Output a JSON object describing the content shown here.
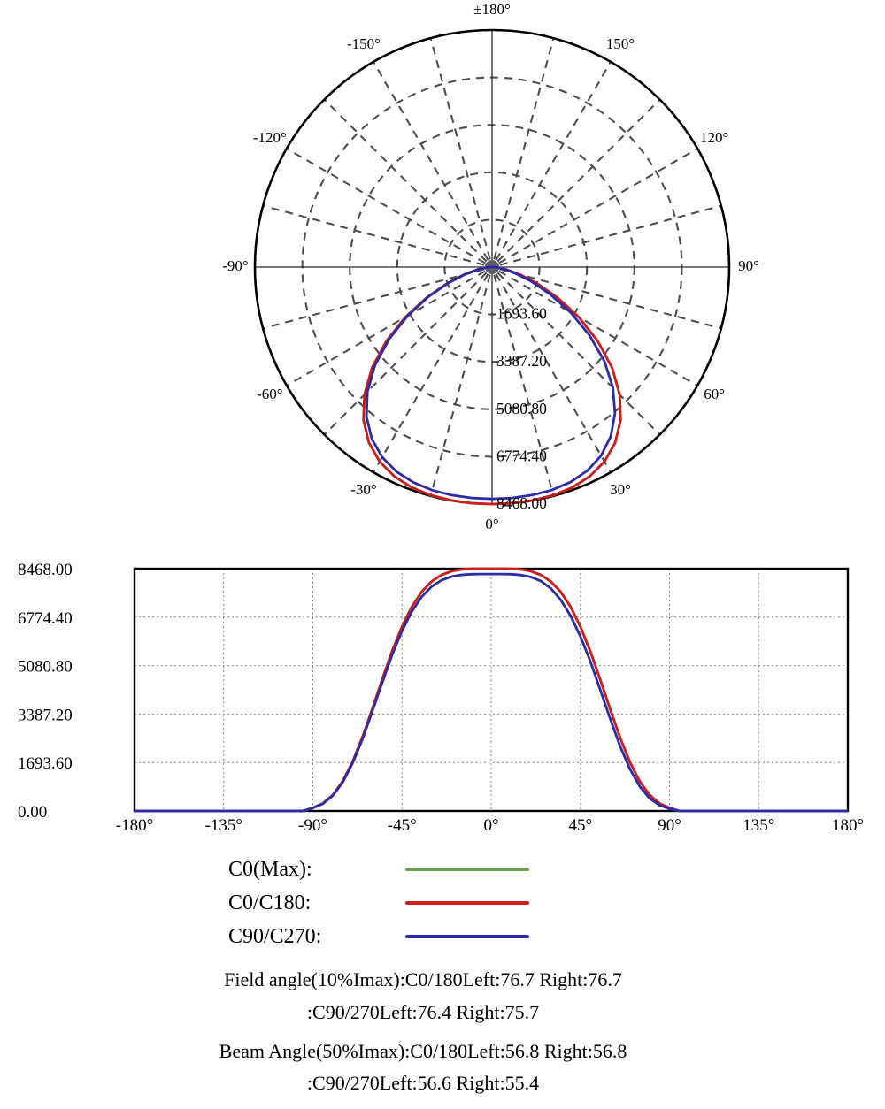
{
  "page": {
    "background": "#ffffff"
  },
  "colors": {
    "c0max_green": "#6b9e54",
    "c0c180_red": "#cf1d1d",
    "c90c270_blue": "#2b2ba8",
    "polar_grid": "#4d4d4d",
    "polar_axis": "#2a2a2a",
    "cart_grid": "#8c8c8c",
    "cart_frame": "#000000",
    "center_dot": "#5e5e6b"
  },
  "legend": {
    "items": [
      {
        "label": "C0(Max):",
        "color": "#6b9e54"
      },
      {
        "label": "C0/C180:",
        "color": "#cf1d1d"
      },
      {
        "label": "C90/C270:",
        "color": "#2b2ba8"
      }
    ]
  },
  "notes": {
    "line1": "Field angle(10%Imax):C0/180Left:76.7 Right:76.7",
    "line2": ":C90/270Left:76.4 Right:75.7",
    "line3": "Beam Angle(50%Imax):C0/180Left:56.8 Right:56.8",
    "line4": ":C90/270Left:56.6 Right:55.4"
  },
  "chart_data": [
    {
      "type": "polar",
      "orientation": "0 deg at bottom, +/-180 deg at top, positive angles clockwise to the right",
      "rmax": 8468,
      "grid": {
        "angle_step_deg": 15,
        "radial_divisions": 5
      },
      "angle_labels": [
        {
          "deg": 180,
          "label": "±180°"
        },
        {
          "deg": -150,
          "label": "-150°"
        },
        {
          "deg": 150,
          "label": "150°"
        },
        {
          "deg": -120,
          "label": "-120°"
        },
        {
          "deg": 120,
          "label": "120°"
        },
        {
          "deg": -90,
          "label": "-90°"
        },
        {
          "deg": 90,
          "label": "90°"
        },
        {
          "deg": -60,
          "label": "-60°"
        },
        {
          "deg": 60,
          "label": "60°"
        },
        {
          "deg": -30,
          "label": "-30°"
        },
        {
          "deg": 30,
          "label": "30°"
        },
        {
          "deg": 0,
          "label": "0°"
        }
      ],
      "radial_tick_labels": [
        "1693.60",
        "3387.20",
        "5080.80",
        "6774.40",
        "8468.00"
      ],
      "angles_deg": [
        -180,
        -175,
        -170,
        -165,
        -160,
        -155,
        -150,
        -145,
        -140,
        -135,
        -130,
        -125,
        -120,
        -115,
        -110,
        -105,
        -100,
        -95,
        -90,
        -85,
        -80,
        -75,
        -70,
        -65,
        -60,
        -55,
        -50,
        -45,
        -40,
        -35,
        -30,
        -25,
        -20,
        -15,
        -10,
        -5,
        0,
        5,
        10,
        15,
        20,
        25,
        30,
        35,
        40,
        45,
        50,
        55,
        60,
        65,
        70,
        75,
        80,
        85,
        90,
        95,
        100,
        105,
        110,
        115,
        120,
        125,
        130,
        135,
        140,
        145,
        150,
        155,
        160,
        165,
        170,
        175,
        180
      ],
      "series": [
        {
          "name": "C0(Max)",
          "color": "#6b9e54",
          "values": [
            0,
            0,
            0,
            0,
            0,
            0,
            0,
            0,
            0,
            0,
            0,
            0,
            0,
            0,
            0,
            0,
            0,
            0,
            107,
            262,
            553,
            1031,
            1712,
            2578,
            3574,
            4601,
            5592,
            6444,
            7141,
            7663,
            8024,
            8251,
            8378,
            8440,
            8462,
            8468,
            8468,
            8468,
            8462,
            8440,
            8378,
            8251,
            8024,
            7663,
            7141,
            6444,
            5592,
            4601,
            3574,
            2578,
            1712,
            1031,
            553,
            262,
            107,
            0,
            0,
            0,
            0,
            0,
            0,
            0,
            0,
            0,
            0,
            0,
            0,
            0,
            0,
            0,
            0,
            0,
            0
          ]
        },
        {
          "name": "C0/C180",
          "color": "#cf1d1d",
          "values": [
            0,
            0,
            0,
            0,
            0,
            0,
            0,
            0,
            0,
            0,
            0,
            0,
            0,
            0,
            0,
            0,
            0,
            0,
            107,
            262,
            553,
            1031,
            1712,
            2578,
            3574,
            4601,
            5592,
            6444,
            7141,
            7663,
            8024,
            8251,
            8378,
            8440,
            8462,
            8468,
            8468,
            8468,
            8462,
            8440,
            8378,
            8251,
            8024,
            7663,
            7141,
            6444,
            5592,
            4601,
            3574,
            2578,
            1712,
            1031,
            553,
            262,
            107,
            0,
            0,
            0,
            0,
            0,
            0,
            0,
            0,
            0,
            0,
            0,
            0,
            0,
            0,
            0,
            0,
            0,
            0
          ]
        },
        {
          "name": "C90/C270",
          "color": "#2b2ba8",
          "values": [
            0,
            0,
            0,
            0,
            0,
            0,
            0,
            0,
            0,
            0,
            0,
            0,
            0,
            0,
            0,
            0,
            0,
            0,
            101,
            250,
            531,
            996,
            1662,
            2504,
            3482,
            4485,
            5458,
            6293,
            6977,
            7489,
            7843,
            8066,
            8191,
            8252,
            8274,
            8280,
            8280,
            8280,
            8272,
            8247,
            8176,
            8034,
            7784,
            7387,
            6830,
            6104,
            5240,
            4245,
            3240,
            2277,
            1472,
            855,
            437,
            197,
            74,
            0,
            0,
            0,
            0,
            0,
            0,
            0,
            0,
            0,
            0,
            0,
            0,
            0,
            0,
            0,
            0,
            0,
            0
          ]
        }
      ]
    },
    {
      "type": "line",
      "xlim": [
        -180,
        180
      ],
      "ylim": [
        0,
        8468
      ],
      "grid": true,
      "x_ticks_deg": [
        -180,
        -135,
        -90,
        -45,
        0,
        45,
        90,
        135,
        180
      ],
      "x_tick_labels": [
        "-180°",
        "-135°",
        "-90°",
        "-45°",
        "0°",
        "45°",
        "90°",
        "135°",
        "180°"
      ],
      "y_tick_labels": [
        "0.00",
        "1693.60",
        "3387.20",
        "5080.80",
        "6774.40",
        "8468.00"
      ],
      "x_deg": [
        -180,
        -175,
        -170,
        -165,
        -160,
        -155,
        -150,
        -145,
        -140,
        -135,
        -130,
        -125,
        -120,
        -115,
        -110,
        -105,
        -100,
        -95,
        -90,
        -85,
        -80,
        -75,
        -70,
        -65,
        -60,
        -55,
        -50,
        -45,
        -40,
        -35,
        -30,
        -25,
        -20,
        -15,
        -10,
        -5,
        0,
        5,
        10,
        15,
        20,
        25,
        30,
        35,
        40,
        45,
        50,
        55,
        60,
        65,
        70,
        75,
        80,
        85,
        90,
        95,
        100,
        105,
        110,
        115,
        120,
        125,
        130,
        135,
        140,
        145,
        150,
        155,
        160,
        165,
        170,
        175,
        180
      ],
      "series": [
        {
          "name": "C0(Max)",
          "color": "#6b9e54",
          "values": [
            0,
            0,
            0,
            0,
            0,
            0,
            0,
            0,
            0,
            0,
            0,
            0,
            0,
            0,
            0,
            0,
            0,
            0,
            107,
            262,
            553,
            1031,
            1712,
            2578,
            3574,
            4601,
            5592,
            6444,
            7141,
            7663,
            8024,
            8251,
            8378,
            8440,
            8462,
            8468,
            8468,
            8468,
            8462,
            8440,
            8378,
            8251,
            8024,
            7663,
            7141,
            6444,
            5592,
            4601,
            3574,
            2578,
            1712,
            1031,
            553,
            262,
            107,
            0,
            0,
            0,
            0,
            0,
            0,
            0,
            0,
            0,
            0,
            0,
            0,
            0,
            0,
            0,
            0,
            0,
            0
          ]
        },
        {
          "name": "C0/C180",
          "color": "#cf1d1d",
          "values": [
            0,
            0,
            0,
            0,
            0,
            0,
            0,
            0,
            0,
            0,
            0,
            0,
            0,
            0,
            0,
            0,
            0,
            0,
            107,
            262,
            553,
            1031,
            1712,
            2578,
            3574,
            4601,
            5592,
            6444,
            7141,
            7663,
            8024,
            8251,
            8378,
            8440,
            8462,
            8468,
            8468,
            8468,
            8462,
            8440,
            8378,
            8251,
            8024,
            7663,
            7141,
            6444,
            5592,
            4601,
            3574,
            2578,
            1712,
            1031,
            553,
            262,
            107,
            0,
            0,
            0,
            0,
            0,
            0,
            0,
            0,
            0,
            0,
            0,
            0,
            0,
            0,
            0,
            0,
            0,
            0
          ]
        },
        {
          "name": "C90/C270",
          "color": "#2b2ba8",
          "values": [
            0,
            0,
            0,
            0,
            0,
            0,
            0,
            0,
            0,
            0,
            0,
            0,
            0,
            0,
            0,
            0,
            0,
            0,
            101,
            250,
            531,
            996,
            1662,
            2504,
            3482,
            4485,
            5458,
            6293,
            6977,
            7489,
            7843,
            8066,
            8191,
            8252,
            8274,
            8280,
            8280,
            8280,
            8272,
            8247,
            8176,
            8034,
            7784,
            7387,
            6830,
            6104,
            5240,
            4245,
            3240,
            2277,
            1472,
            855,
            437,
            197,
            74,
            0,
            0,
            0,
            0,
            0,
            0,
            0,
            0,
            0,
            0,
            0,
            0,
            0,
            0,
            0,
            0,
            0,
            0
          ]
        }
      ]
    }
  ]
}
